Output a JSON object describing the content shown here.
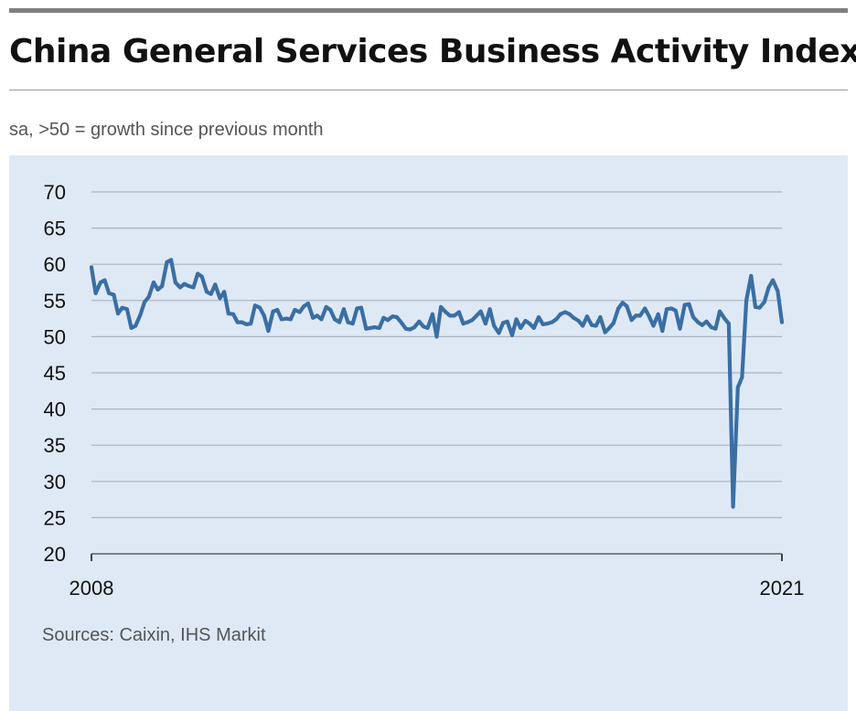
{
  "header": {
    "title": "China General Services Business Activity Index",
    "subtitle": "sa, >50 = growth since previous month"
  },
  "footer": {
    "source": "Sources: Caixin, IHS Markit"
  },
  "colors": {
    "panel": "#dfe9f6",
    "line": "#3a6fa5",
    "grid": "#aab3bf",
    "axis": "#444444"
  },
  "chart_data": {
    "type": "line",
    "title": "China General Services Business Activity Index",
    "subtitle": "sa, >50 = growth since previous month",
    "xlabel": "",
    "ylabel": "",
    "x_ticks": [
      "2008",
      "2021"
    ],
    "y_ticks": [
      20,
      25,
      30,
      35,
      40,
      45,
      50,
      55,
      60,
      65,
      70
    ],
    "xlim": [
      2008.0,
      2021.0
    ],
    "ylim": [
      20,
      70
    ],
    "grid": "horizontal",
    "legend": "none",
    "series": [
      {
        "points": [
          [
            2008.0,
            59.6
          ],
          [
            2008.08,
            56.0
          ],
          [
            2008.17,
            57.5
          ],
          [
            2008.25,
            57.8
          ],
          [
            2008.33,
            56.0
          ],
          [
            2008.42,
            55.8
          ],
          [
            2008.5,
            53.2
          ],
          [
            2008.58,
            54.0
          ],
          [
            2008.67,
            53.8
          ],
          [
            2008.75,
            51.2
          ],
          [
            2008.83,
            51.5
          ],
          [
            2008.92,
            53.0
          ],
          [
            2009.0,
            54.8
          ],
          [
            2009.08,
            55.5
          ],
          [
            2009.17,
            57.5
          ],
          [
            2009.25,
            56.5
          ],
          [
            2009.33,
            57.0
          ],
          [
            2009.42,
            60.3
          ],
          [
            2009.5,
            60.6
          ],
          [
            2009.58,
            57.5
          ],
          [
            2009.67,
            56.8
          ],
          [
            2009.75,
            57.3
          ],
          [
            2009.83,
            57.0
          ],
          [
            2009.92,
            56.8
          ],
          [
            2010.0,
            58.7
          ],
          [
            2010.08,
            58.3
          ],
          [
            2010.17,
            56.2
          ],
          [
            2010.25,
            55.9
          ],
          [
            2010.33,
            57.2
          ],
          [
            2010.42,
            55.3
          ],
          [
            2010.5,
            56.2
          ],
          [
            2010.58,
            53.2
          ],
          [
            2010.67,
            53.1
          ],
          [
            2010.75,
            52.0
          ],
          [
            2010.83,
            52.0
          ],
          [
            2010.92,
            51.7
          ],
          [
            2011.0,
            51.8
          ],
          [
            2011.08,
            54.3
          ],
          [
            2011.17,
            54.0
          ],
          [
            2011.25,
            52.9
          ],
          [
            2011.33,
            50.8
          ],
          [
            2011.42,
            53.5
          ],
          [
            2011.5,
            53.7
          ],
          [
            2011.58,
            52.4
          ],
          [
            2011.67,
            52.5
          ],
          [
            2011.75,
            52.4
          ],
          [
            2011.83,
            53.7
          ],
          [
            2011.92,
            53.4
          ],
          [
            2012.0,
            54.2
          ],
          [
            2012.08,
            54.6
          ],
          [
            2012.17,
            52.6
          ],
          [
            2012.25,
            52.9
          ],
          [
            2012.33,
            52.4
          ],
          [
            2012.42,
            54.1
          ],
          [
            2012.5,
            53.7
          ],
          [
            2012.58,
            52.4
          ],
          [
            2012.67,
            52.0
          ],
          [
            2012.75,
            53.8
          ],
          [
            2012.83,
            52.0
          ],
          [
            2012.92,
            51.8
          ],
          [
            2013.0,
            53.9
          ],
          [
            2013.08,
            54.0
          ],
          [
            2013.17,
            51.1
          ],
          [
            2013.25,
            51.2
          ],
          [
            2013.33,
            51.3
          ],
          [
            2013.42,
            51.2
          ],
          [
            2013.5,
            52.6
          ],
          [
            2013.58,
            52.3
          ],
          [
            2013.67,
            52.8
          ],
          [
            2013.75,
            52.7
          ],
          [
            2013.83,
            52.0
          ],
          [
            2013.92,
            51.1
          ],
          [
            2014.0,
            51.0
          ],
          [
            2014.08,
            51.3
          ],
          [
            2014.17,
            52.1
          ],
          [
            2014.25,
            51.4
          ],
          [
            2014.33,
            51.2
          ],
          [
            2014.42,
            53.1
          ],
          [
            2014.5,
            50.0
          ],
          [
            2014.58,
            54.1
          ],
          [
            2014.67,
            53.4
          ],
          [
            2014.75,
            52.9
          ],
          [
            2014.83,
            52.9
          ],
          [
            2014.92,
            53.4
          ],
          [
            2015.0,
            51.8
          ],
          [
            2015.08,
            52.0
          ],
          [
            2015.17,
            52.3
          ],
          [
            2015.25,
            52.9
          ],
          [
            2015.33,
            53.5
          ],
          [
            2015.42,
            51.8
          ],
          [
            2015.5,
            53.8
          ],
          [
            2015.58,
            51.5
          ],
          [
            2015.67,
            50.5
          ],
          [
            2015.75,
            51.9
          ],
          [
            2015.83,
            52.1
          ],
          [
            2015.92,
            50.2
          ],
          [
            2016.0,
            52.4
          ],
          [
            2016.08,
            51.2
          ],
          [
            2016.17,
            52.2
          ],
          [
            2016.25,
            51.8
          ],
          [
            2016.33,
            51.2
          ],
          [
            2016.42,
            52.7
          ],
          [
            2016.5,
            51.7
          ],
          [
            2016.58,
            51.8
          ],
          [
            2016.67,
            52.0
          ],
          [
            2016.75,
            52.4
          ],
          [
            2016.83,
            53.1
          ],
          [
            2016.92,
            53.4
          ],
          [
            2017.0,
            53.1
          ],
          [
            2017.08,
            52.6
          ],
          [
            2017.17,
            52.2
          ],
          [
            2017.25,
            51.5
          ],
          [
            2017.33,
            52.8
          ],
          [
            2017.42,
            51.6
          ],
          [
            2017.5,
            51.5
          ],
          [
            2017.58,
            52.7
          ],
          [
            2017.67,
            50.6
          ],
          [
            2017.75,
            51.2
          ],
          [
            2017.83,
            51.9
          ],
          [
            2017.92,
            53.9
          ],
          [
            2018.0,
            54.7
          ],
          [
            2018.08,
            54.2
          ],
          [
            2018.17,
            52.3
          ],
          [
            2018.25,
            52.9
          ],
          [
            2018.33,
            52.9
          ],
          [
            2018.42,
            53.9
          ],
          [
            2018.5,
            52.8
          ],
          [
            2018.58,
            51.5
          ],
          [
            2018.67,
            53.1
          ],
          [
            2018.75,
            50.8
          ],
          [
            2018.83,
            53.8
          ],
          [
            2018.92,
            53.9
          ],
          [
            2019.0,
            53.6
          ],
          [
            2019.08,
            51.1
          ],
          [
            2019.17,
            54.4
          ],
          [
            2019.25,
            54.5
          ],
          [
            2019.33,
            52.7
          ],
          [
            2019.42,
            52.0
          ],
          [
            2019.5,
            51.6
          ],
          [
            2019.58,
            52.1
          ],
          [
            2019.67,
            51.3
          ],
          [
            2019.75,
            51.1
          ],
          [
            2019.83,
            53.5
          ],
          [
            2019.92,
            52.5
          ],
          [
            2020.0,
            51.8
          ],
          [
            2020.08,
            26.5
          ],
          [
            2020.17,
            43.0
          ],
          [
            2020.25,
            44.4
          ],
          [
            2020.33,
            55.0
          ],
          [
            2020.42,
            58.4
          ],
          [
            2020.5,
            54.1
          ],
          [
            2020.58,
            54.0
          ],
          [
            2020.67,
            54.8
          ],
          [
            2020.75,
            56.8
          ],
          [
            2020.83,
            57.8
          ],
          [
            2020.92,
            56.3
          ],
          [
            2021.0,
            52.0
          ]
        ]
      }
    ]
  }
}
